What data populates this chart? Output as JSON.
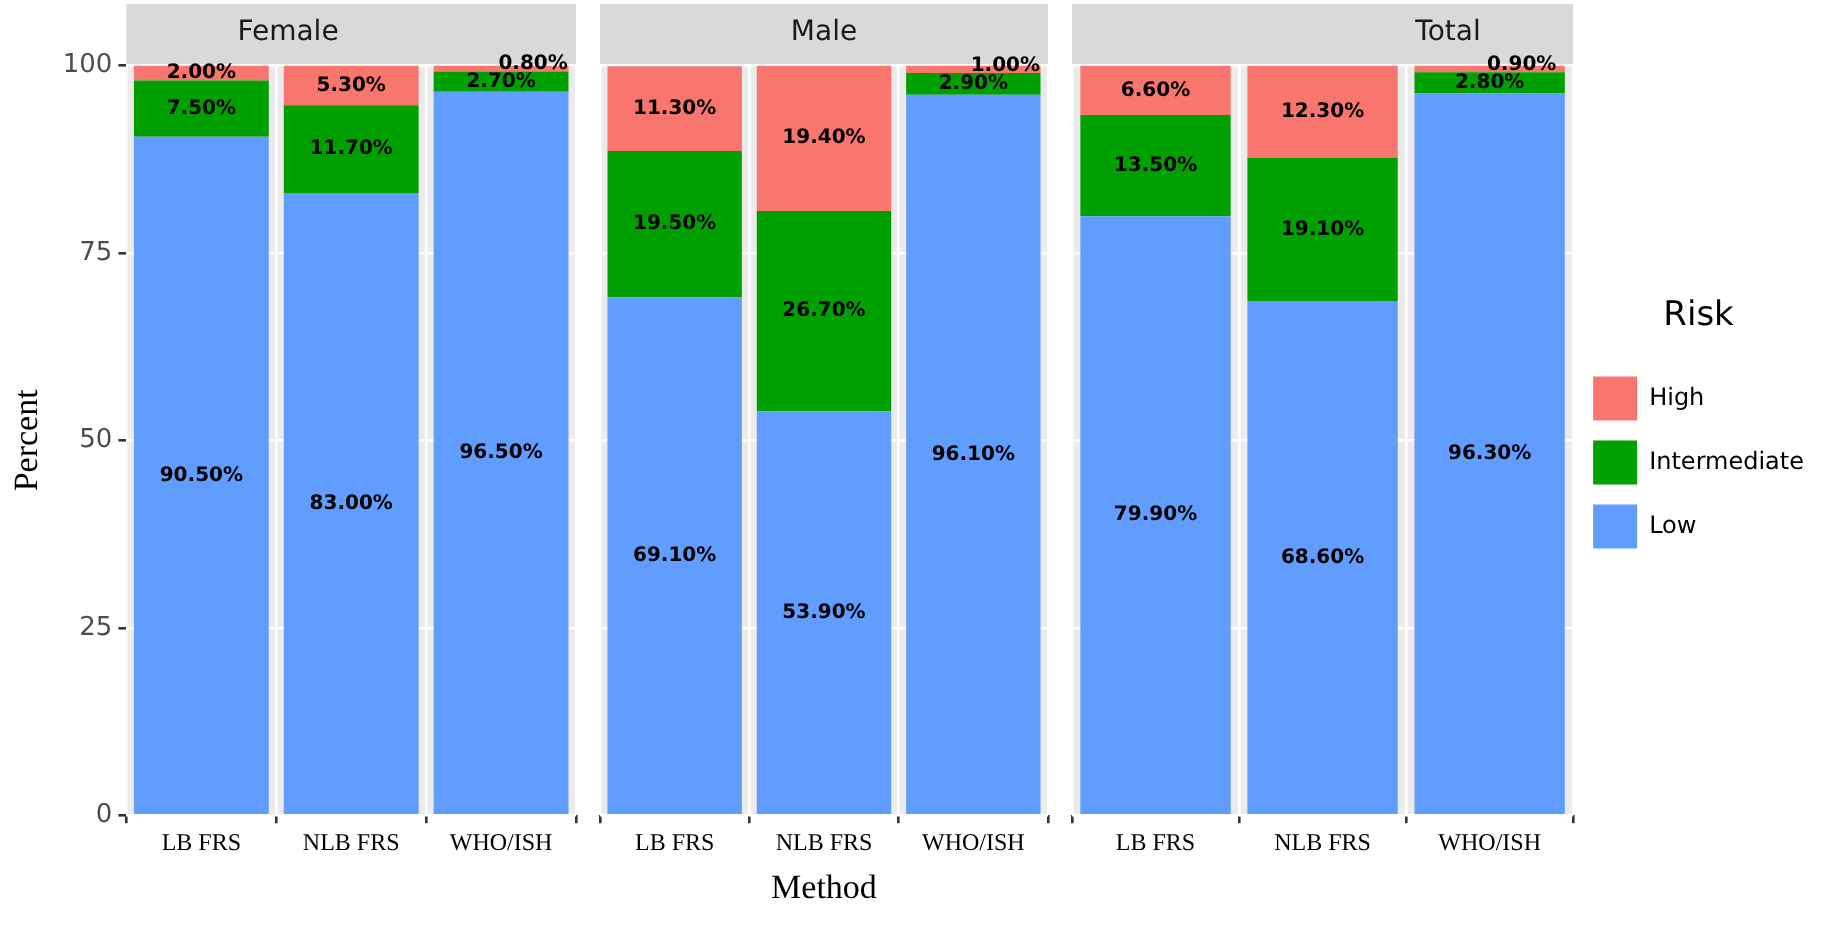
{
  "chart_data": [
    {
      "type": "bar",
      "stacked": true,
      "title": "Female",
      "ylabel": "Percent",
      "categories": [
        "LB FRS",
        "NLB FRS",
        "WHO/ISH"
      ],
      "ylim": [
        0,
        100
      ],
      "yticks": [
        0,
        25,
        50,
        75,
        100
      ],
      "grid": true,
      "series": [
        {
          "color": "#619cff",
          "values": [
            90.5,
            83.0,
            96.5
          ],
          "value_labels": [
            "90.50%",
            "83.00%",
            "96.50%"
          ]
        },
        {
          "color": "#00a000",
          "values": [
            7.5,
            11.7,
            2.7
          ],
          "value_labels": [
            "7.50%",
            "11.70%",
            "2.70%"
          ]
        },
        {
          "color": "#f8766d",
          "values": [
            2.0,
            5.3,
            0.8
          ],
          "value_labels": [
            "2.00%",
            "5.30%",
            "0.80%"
          ]
        }
      ]
    },
    {
      "type": "bar",
      "stacked": true,
      "title": "Male",
      "xlabel": "Method",
      "categories": [
        "LB FRS",
        "NLB FRS",
        "WHO/ISH"
      ],
      "ylim": [
        0,
        100
      ],
      "yticks": [
        0,
        25,
        50,
        75,
        100
      ],
      "grid": true,
      "tick_labels": "x",
      "series": [
        {
          "color": "#619cff",
          "values": [
            69.1,
            53.9,
            96.1
          ],
          "value_labels": [
            "69.10%",
            "53.90%",
            "96.10%"
          ]
        },
        {
          "color": "#00a000",
          "values": [
            19.5,
            26.7,
            2.9
          ],
          "value_labels": [
            "19.50%",
            "26.70%",
            "2.90%"
          ]
        },
        {
          "color": "#f8766d",
          "values": [
            11.3,
            19.4,
            1.0
          ],
          "value_labels": [
            "11.30%",
            "19.40%",
            "1.00%"
          ]
        }
      ]
    },
    {
      "type": "bar",
      "stacked": true,
      "title": "Total",
      "legend": "right",
      "legend_title": "Risk",
      "categories": [
        "LB FRS",
        "NLB FRS",
        "WHO/ISH"
      ],
      "ylim": [
        0,
        100
      ],
      "yticks": [
        0,
        25,
        50,
        75,
        100
      ],
      "grid": true,
      "tick_labels": "x",
      "series": [
        {
          "name": "Low",
          "color": "#619cff",
          "values": [
            79.9,
            68.6,
            96.3
          ],
          "value_labels": [
            "79.90%",
            "68.60%",
            "96.30%"
          ]
        },
        {
          "name": "Intermediate",
          "color": "#00a000",
          "values": [
            13.5,
            19.1,
            2.8
          ],
          "value_labels": [
            "13.50%",
            "19.10%",
            "2.80%"
          ]
        },
        {
          "name": "High",
          "color": "#f8766d",
          "values": [
            6.6,
            12.3,
            0.9
          ],
          "value_labels": [
            "6.60%",
            "12.30%",
            "0.90%"
          ]
        }
      ]
    }
  ]
}
